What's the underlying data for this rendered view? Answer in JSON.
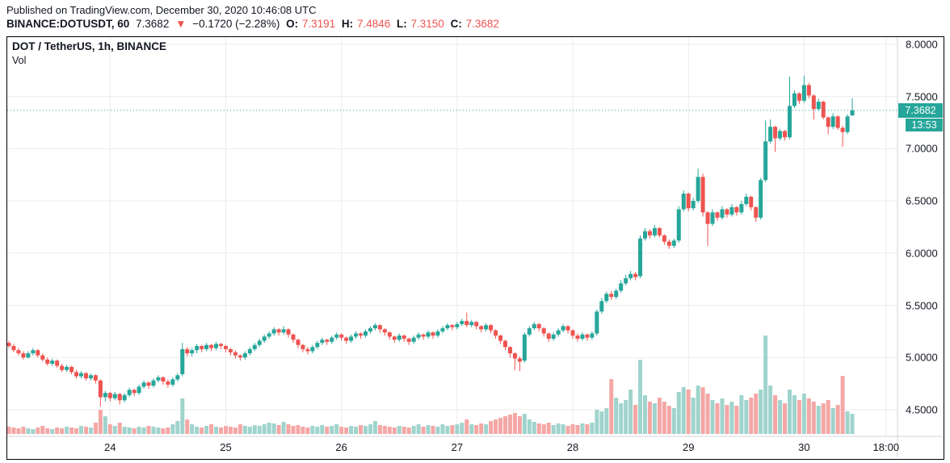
{
  "header": {
    "published_line": "Published on TradingView.com, December 30, 2020 10:46:08 UTC",
    "symbol_line": {
      "symbol": "BINANCE:DOTUSDT, 60",
      "last": "7.3682",
      "arrow": "▼",
      "change": "−0.1720 (−2.28%)",
      "o_label": "O:",
      "o": "7.3191",
      "h_label": "H:",
      "h": "7.4846",
      "l_label": "L:",
      "l": "7.3150",
      "c_label": "C:",
      "c": "7.3682"
    }
  },
  "legend": {
    "title": "DOT / TetherUS, 1h, BINANCE",
    "vol_label": "Vol"
  },
  "price_axis": {
    "last_price_badge": "7.3682",
    "countdown_badge": "13:53"
  },
  "colors": {
    "up": "#26a69a",
    "down": "#ef5350",
    "vol_up": "#9fd4cd",
    "vol_down": "#f4a7a5",
    "grid": "#ececec",
    "axis_border": "#d1d4dc",
    "badge": "#26a69a",
    "text": "#131722",
    "red_text": "#ef5350"
  },
  "chart_data": {
    "type": "candlestick+volume",
    "title": "DOT / TetherUS, 1h, BINANCE",
    "symbol": "DOT/USDT",
    "exchange": "BINANCE",
    "interval": "1h",
    "start_time": "2020-12-23 03:00 UTC",
    "end_time": "2020-12-30 10:00 UTC",
    "last_price": 7.3682,
    "countdown": "13:53",
    "current_bar": {
      "open": 7.3191,
      "high": 7.4846,
      "low": 7.315,
      "close": 7.3682
    },
    "y_axis": {
      "min": 4.25,
      "max": 8.07,
      "ticks": [
        8.0,
        7.5,
        7.0,
        6.5,
        6.0,
        5.5,
        5.0,
        4.5
      ]
    },
    "x_axis": {
      "day_ticks": [
        {
          "i": 21,
          "label": "24"
        },
        {
          "i": 45,
          "label": "25"
        },
        {
          "i": 69,
          "label": "26"
        },
        {
          "i": 93,
          "label": "27"
        },
        {
          "i": 117,
          "label": "28"
        },
        {
          "i": 141,
          "label": "29"
        },
        {
          "i": 165,
          "label": "30"
        },
        {
          "i": 182,
          "label": "18:00"
        }
      ]
    },
    "legend_note": "candles are [open, high, low, close, volume]; hourly from start_time",
    "candles": [
      [
        5.14,
        5.16,
        5.09,
        5.11,
        9
      ],
      [
        5.11,
        5.13,
        5.05,
        5.07,
        8
      ],
      [
        5.07,
        5.09,
        5.02,
        5.04,
        7
      ],
      [
        5.04,
        5.06,
        4.98,
        5.0,
        9
      ],
      [
        5.0,
        5.06,
        4.99,
        5.04,
        7
      ],
      [
        5.04,
        5.09,
        5.02,
        5.07,
        6
      ],
      [
        5.07,
        5.08,
        5.0,
        5.02,
        8
      ],
      [
        5.02,
        5.04,
        4.96,
        4.98,
        10
      ],
      [
        4.98,
        5.0,
        4.92,
        4.94,
        7
      ],
      [
        4.94,
        4.99,
        4.92,
        4.97,
        6
      ],
      [
        4.97,
        4.98,
        4.9,
        4.92,
        8
      ],
      [
        4.92,
        4.94,
        4.86,
        4.88,
        7
      ],
      [
        4.88,
        4.93,
        4.86,
        4.91,
        9
      ],
      [
        4.91,
        4.92,
        4.84,
        4.86,
        8
      ],
      [
        4.86,
        4.88,
        4.8,
        4.82,
        7
      ],
      [
        4.82,
        4.87,
        4.8,
        4.85,
        10
      ],
      [
        4.85,
        4.86,
        4.78,
        4.8,
        9
      ],
      [
        4.8,
        4.85,
        4.78,
        4.83,
        8
      ],
      [
        4.83,
        4.84,
        4.75,
        4.78,
        14
      ],
      [
        4.78,
        4.79,
        4.53,
        4.62,
        30
      ],
      [
        4.62,
        4.68,
        4.58,
        4.66,
        22
      ],
      [
        4.66,
        4.67,
        4.58,
        4.61,
        12
      ],
      [
        4.61,
        4.67,
        4.59,
        4.65,
        10
      ],
      [
        4.65,
        4.66,
        4.55,
        4.59,
        14
      ],
      [
        4.59,
        4.66,
        4.57,
        4.64,
        9
      ],
      [
        4.64,
        4.71,
        4.62,
        4.69,
        8
      ],
      [
        4.69,
        4.7,
        4.63,
        4.66,
        7
      ],
      [
        4.66,
        4.74,
        4.64,
        4.72,
        9
      ],
      [
        4.72,
        4.78,
        4.7,
        4.76,
        8
      ],
      [
        4.76,
        4.77,
        4.7,
        4.73,
        10
      ],
      [
        4.73,
        4.8,
        4.71,
        4.78,
        9
      ],
      [
        4.78,
        4.83,
        4.76,
        4.81,
        8
      ],
      [
        4.81,
        4.82,
        4.74,
        4.77,
        7
      ],
      [
        4.77,
        4.79,
        4.71,
        4.74,
        8
      ],
      [
        4.74,
        4.81,
        4.72,
        4.79,
        12
      ],
      [
        4.79,
        4.85,
        4.77,
        4.83,
        16
      ],
      [
        4.84,
        5.14,
        4.82,
        5.08,
        44
      ],
      [
        5.08,
        5.1,
        5.01,
        5.04,
        18
      ],
      [
        5.04,
        5.09,
        5.01,
        5.07,
        12
      ],
      [
        5.07,
        5.13,
        5.04,
        5.11,
        9
      ],
      [
        5.11,
        5.12,
        5.05,
        5.08,
        8
      ],
      [
        5.08,
        5.14,
        5.06,
        5.12,
        10
      ],
      [
        5.12,
        5.13,
        5.06,
        5.09,
        12
      ],
      [
        5.09,
        5.15,
        5.07,
        5.13,
        9
      ],
      [
        5.13,
        5.14,
        5.08,
        5.11,
        8
      ],
      [
        5.11,
        5.12,
        5.05,
        5.08,
        10
      ],
      [
        5.08,
        5.09,
        5.02,
        5.05,
        9
      ],
      [
        5.05,
        5.07,
        4.99,
        5.02,
        8
      ],
      [
        5.02,
        5.03,
        4.97,
        5.0,
        12
      ],
      [
        5.0,
        5.06,
        4.98,
        5.04,
        10
      ],
      [
        5.04,
        5.1,
        5.02,
        5.08,
        9
      ],
      [
        5.08,
        5.14,
        5.06,
        5.12,
        11
      ],
      [
        5.12,
        5.18,
        5.1,
        5.16,
        10
      ],
      [
        5.16,
        5.22,
        5.14,
        5.2,
        12
      ],
      [
        5.2,
        5.25,
        5.18,
        5.23,
        14
      ],
      [
        5.23,
        5.29,
        5.21,
        5.27,
        13
      ],
      [
        5.27,
        5.28,
        5.21,
        5.24,
        11
      ],
      [
        5.24,
        5.3,
        5.22,
        5.27,
        15
      ],
      [
        5.27,
        5.28,
        5.19,
        5.22,
        12
      ],
      [
        5.22,
        5.23,
        5.14,
        5.17,
        10
      ],
      [
        5.17,
        5.18,
        5.09,
        5.12,
        11
      ],
      [
        5.12,
        5.13,
        5.05,
        5.08,
        9
      ],
      [
        5.08,
        5.1,
        5.03,
        5.06,
        8
      ],
      [
        5.06,
        5.12,
        5.04,
        5.1,
        10
      ],
      [
        5.1,
        5.16,
        5.08,
        5.14,
        9
      ],
      [
        5.14,
        5.19,
        5.12,
        5.17,
        11
      ],
      [
        5.17,
        5.18,
        5.12,
        5.15,
        9
      ],
      [
        5.15,
        5.21,
        5.13,
        5.19,
        10
      ],
      [
        5.19,
        5.24,
        5.17,
        5.22,
        12
      ],
      [
        5.22,
        5.23,
        5.16,
        5.19,
        9
      ],
      [
        5.19,
        5.2,
        5.13,
        5.16,
        8
      ],
      [
        5.16,
        5.22,
        5.14,
        5.2,
        10
      ],
      [
        5.2,
        5.25,
        5.18,
        5.23,
        9
      ],
      [
        5.23,
        5.24,
        5.18,
        5.21,
        11
      ],
      [
        5.21,
        5.27,
        5.19,
        5.25,
        10
      ],
      [
        5.25,
        5.3,
        5.23,
        5.28,
        12
      ],
      [
        5.28,
        5.33,
        5.26,
        5.31,
        16
      ],
      [
        5.31,
        5.32,
        5.24,
        5.27,
        11
      ],
      [
        5.27,
        5.28,
        5.21,
        5.24,
        10
      ],
      [
        5.24,
        5.25,
        5.17,
        5.2,
        9
      ],
      [
        5.2,
        5.21,
        5.14,
        5.17,
        8
      ],
      [
        5.17,
        5.23,
        5.15,
        5.21,
        10
      ],
      [
        5.21,
        5.22,
        5.15,
        5.18,
        9
      ],
      [
        5.18,
        5.19,
        5.12,
        5.15,
        8
      ],
      [
        5.15,
        5.21,
        5.13,
        5.19,
        10
      ],
      [
        5.19,
        5.24,
        5.17,
        5.22,
        12
      ],
      [
        5.22,
        5.23,
        5.17,
        5.2,
        9
      ],
      [
        5.2,
        5.26,
        5.18,
        5.24,
        11
      ],
      [
        5.24,
        5.25,
        5.18,
        5.21,
        10
      ],
      [
        5.21,
        5.27,
        5.19,
        5.25,
        9
      ],
      [
        5.25,
        5.3,
        5.23,
        5.28,
        12
      ],
      [
        5.28,
        5.33,
        5.26,
        5.31,
        10
      ],
      [
        5.31,
        5.32,
        5.26,
        5.29,
        11
      ],
      [
        5.29,
        5.34,
        5.27,
        5.32,
        12
      ],
      [
        5.32,
        5.37,
        5.3,
        5.35,
        14
      ],
      [
        5.35,
        5.43,
        5.29,
        5.31,
        18
      ],
      [
        5.31,
        5.36,
        5.29,
        5.34,
        12
      ],
      [
        5.34,
        5.35,
        5.27,
        5.3,
        11
      ],
      [
        5.3,
        5.31,
        5.24,
        5.27,
        13
      ],
      [
        5.27,
        5.33,
        5.25,
        5.31,
        12
      ],
      [
        5.31,
        5.32,
        5.23,
        5.26,
        16
      ],
      [
        5.26,
        5.27,
        5.18,
        5.21,
        18
      ],
      [
        5.21,
        5.22,
        5.13,
        5.16,
        20
      ],
      [
        5.16,
        5.17,
        5.07,
        5.1,
        22
      ],
      [
        5.1,
        5.11,
        5.0,
        5.04,
        24
      ],
      [
        5.04,
        5.05,
        4.88,
        4.99,
        26
      ],
      [
        4.99,
        5.01,
        4.87,
        4.96,
        22
      ],
      [
        4.97,
        5.24,
        4.95,
        5.22,
        25
      ],
      [
        5.22,
        5.3,
        5.2,
        5.28,
        18
      ],
      [
        5.28,
        5.34,
        5.26,
        5.32,
        15
      ],
      [
        5.32,
        5.33,
        5.25,
        5.28,
        13
      ],
      [
        5.28,
        5.29,
        5.2,
        5.23,
        12
      ],
      [
        5.23,
        5.24,
        5.15,
        5.18,
        14
      ],
      [
        5.18,
        5.24,
        5.16,
        5.22,
        11
      ],
      [
        5.22,
        5.28,
        5.2,
        5.26,
        13
      ],
      [
        5.26,
        5.32,
        5.24,
        5.3,
        12
      ],
      [
        5.3,
        5.31,
        5.23,
        5.26,
        10
      ],
      [
        5.26,
        5.27,
        5.18,
        5.21,
        12
      ],
      [
        5.21,
        5.23,
        5.15,
        5.18,
        11
      ],
      [
        5.18,
        5.24,
        5.16,
        5.22,
        13
      ],
      [
        5.22,
        5.23,
        5.16,
        5.19,
        12
      ],
      [
        5.19,
        5.25,
        5.17,
        5.23,
        14
      ],
      [
        5.23,
        5.46,
        5.21,
        5.44,
        30
      ],
      [
        5.44,
        5.57,
        5.42,
        5.54,
        28
      ],
      [
        5.54,
        5.63,
        5.52,
        5.61,
        32
      ],
      [
        5.61,
        5.64,
        5.55,
        5.58,
        68
      ],
      [
        5.58,
        5.66,
        5.56,
        5.64,
        45
      ],
      [
        5.64,
        5.74,
        5.62,
        5.71,
        38
      ],
      [
        5.71,
        5.79,
        5.69,
        5.76,
        42
      ],
      [
        5.76,
        5.83,
        5.74,
        5.8,
        55
      ],
      [
        5.8,
        5.82,
        5.74,
        5.77,
        36
      ],
      [
        5.78,
        6.17,
        5.76,
        6.14,
        92
      ],
      [
        6.14,
        6.24,
        6.12,
        6.21,
        48
      ],
      [
        6.21,
        6.23,
        6.14,
        6.17,
        40
      ],
      [
        6.17,
        6.27,
        6.15,
        6.24,
        38
      ],
      [
        6.24,
        6.25,
        6.15,
        6.17,
        45
      ],
      [
        6.17,
        6.18,
        6.08,
        6.11,
        40
      ],
      [
        6.11,
        6.13,
        6.04,
        6.07,
        35
      ],
      [
        6.07,
        6.14,
        6.05,
        6.12,
        32
      ],
      [
        6.12,
        6.45,
        6.1,
        6.42,
        52
      ],
      [
        6.42,
        6.6,
        6.4,
        6.57,
        58
      ],
      [
        6.57,
        6.58,
        6.4,
        6.43,
        55
      ],
      [
        6.43,
        6.53,
        6.41,
        6.5,
        45
      ],
      [
        6.5,
        6.81,
        6.48,
        6.73,
        60
      ],
      [
        6.73,
        6.76,
        6.35,
        6.39,
        58
      ],
      [
        6.39,
        6.4,
        6.07,
        6.28,
        50
      ],
      [
        6.28,
        6.42,
        6.26,
        6.39,
        42
      ],
      [
        6.39,
        6.4,
        6.31,
        6.34,
        38
      ],
      [
        6.34,
        6.45,
        6.32,
        6.42,
        44
      ],
      [
        6.42,
        6.43,
        6.34,
        6.37,
        36
      ],
      [
        6.37,
        6.47,
        6.35,
        6.44,
        40
      ],
      [
        6.44,
        6.45,
        6.36,
        6.39,
        35
      ],
      [
        6.39,
        6.5,
        6.37,
        6.47,
        48
      ],
      [
        6.47,
        6.57,
        6.45,
        6.54,
        42
      ],
      [
        6.54,
        6.55,
        6.41,
        6.44,
        45
      ],
      [
        6.44,
        6.45,
        6.3,
        6.34,
        50
      ],
      [
        6.34,
        6.72,
        6.32,
        6.7,
        55
      ],
      [
        6.7,
        7.27,
        6.68,
        7.07,
        122
      ],
      [
        7.07,
        7.28,
        7.05,
        7.21,
        60
      ],
      [
        7.21,
        7.22,
        6.97,
        7.1,
        48
      ],
      [
        7.1,
        7.19,
        7.08,
        7.17,
        42
      ],
      [
        7.17,
        7.18,
        7.08,
        7.11,
        38
      ],
      [
        7.11,
        7.69,
        7.09,
        7.41,
        55
      ],
      [
        7.41,
        7.56,
        7.39,
        7.53,
        48
      ],
      [
        7.53,
        7.54,
        7.43,
        7.46,
        42
      ],
      [
        7.46,
        7.7,
        7.44,
        7.61,
        50
      ],
      [
        7.61,
        7.63,
        7.48,
        7.51,
        44
      ],
      [
        7.51,
        7.52,
        7.28,
        7.38,
        40
      ],
      [
        7.38,
        7.48,
        7.36,
        7.45,
        35
      ],
      [
        7.45,
        7.46,
        7.28,
        7.3,
        38
      ],
      [
        7.3,
        7.31,
        7.14,
        7.21,
        42
      ],
      [
        7.21,
        7.34,
        7.19,
        7.31,
        32
      ],
      [
        7.31,
        7.32,
        7.18,
        7.2,
        36
      ],
      [
        7.2,
        7.22,
        7.02,
        7.16,
        72
      ],
      [
        7.16,
        7.33,
        7.14,
        7.31,
        28
      ],
      [
        7.3191,
        7.4846,
        7.315,
        7.3682,
        25
      ]
    ]
  }
}
